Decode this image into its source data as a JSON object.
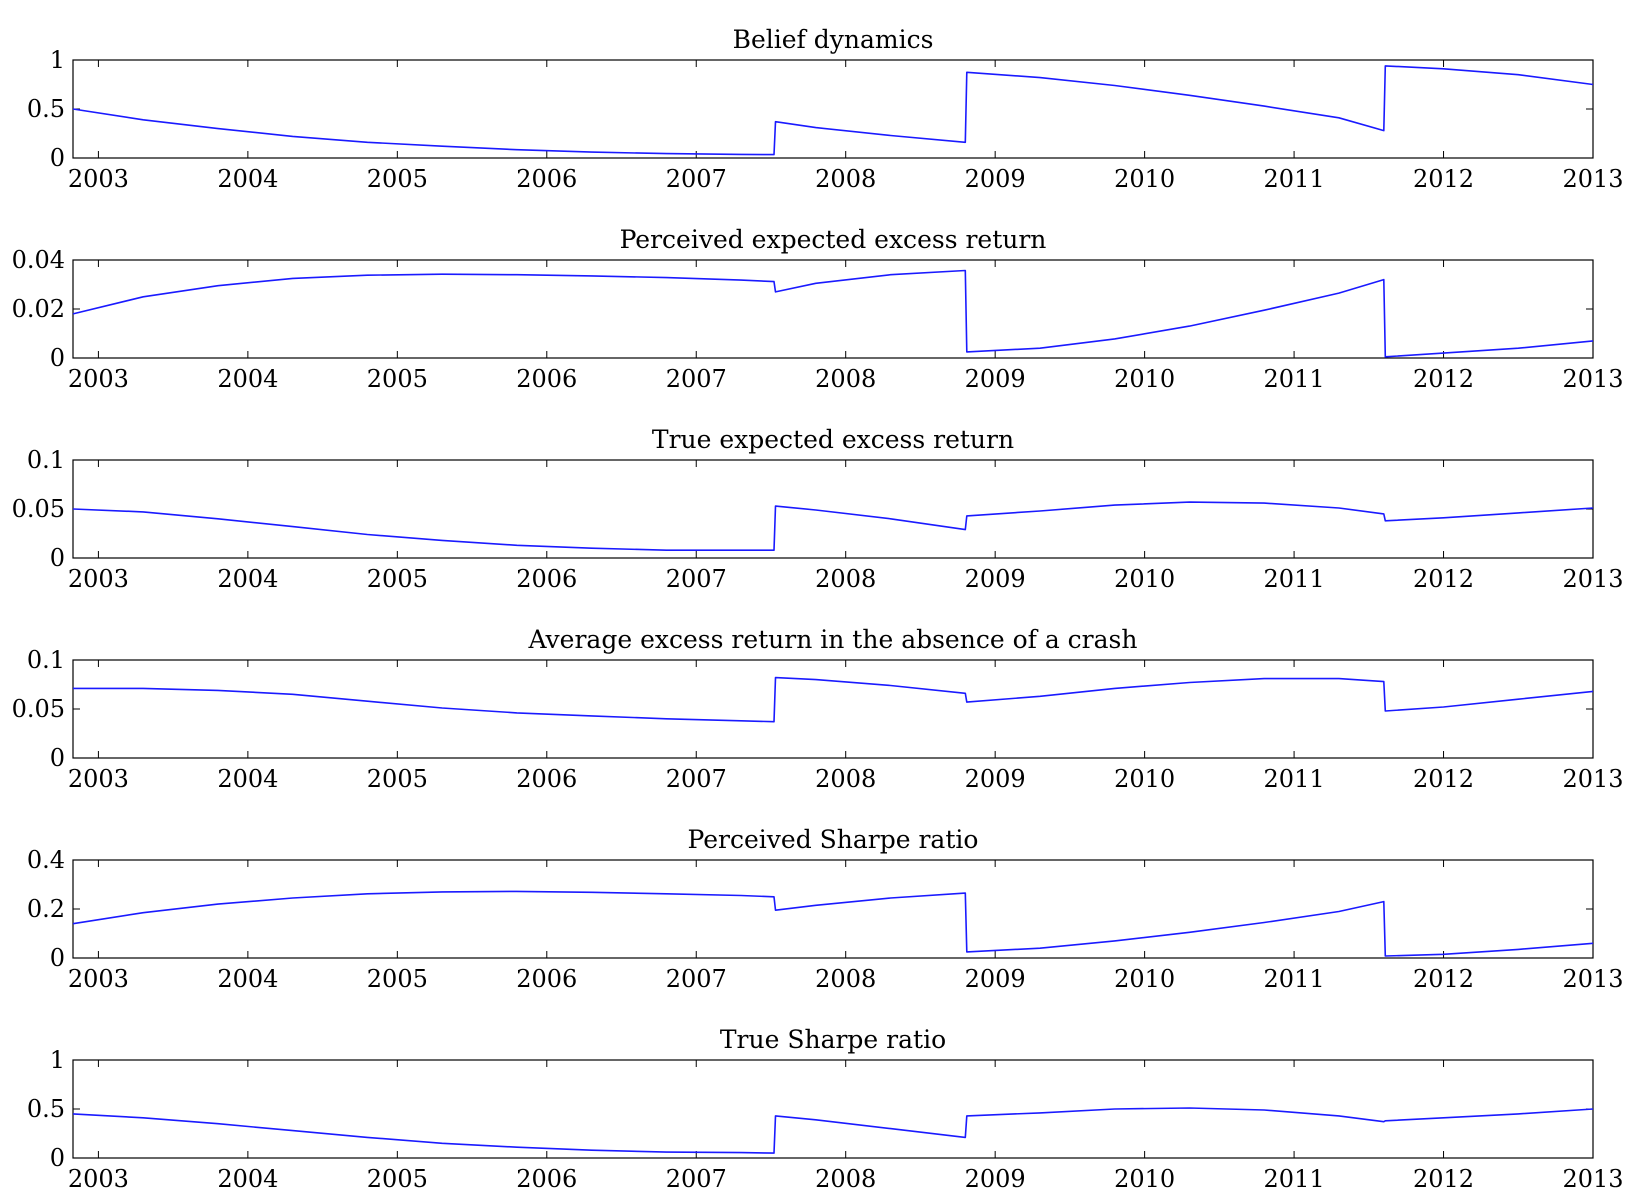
{
  "line_color": "#1a1aff",
  "axis_color": "#000000",
  "chart_data": [
    {
      "type": "line",
      "title": "Belief dynamics",
      "ylim": [
        0,
        1
      ],
      "yticks": [
        0,
        0.5,
        1
      ],
      "ytick_labels": [
        "0",
        "0.5",
        "1"
      ],
      "xlim": [
        2002.83,
        2013.0
      ],
      "xticks": [
        2003,
        2004,
        2005,
        2006,
        2007,
        2008,
        2009,
        2010,
        2011,
        2012,
        2013
      ],
      "xtick_labels": [
        "2003",
        "2004",
        "2005",
        "2006",
        "2007",
        "2008",
        "2009",
        "2010",
        "2011",
        "2012",
        "2013"
      ],
      "series": [
        {
          "x": [
            2002.83,
            2003.3,
            2003.8,
            2004.3,
            2004.8,
            2005.3,
            2005.8,
            2006.3,
            2006.8,
            2007.3,
            2007.52,
            2007.53,
            2007.8,
            2008.3,
            2008.8,
            2008.81,
            2009.3,
            2009.8,
            2010.3,
            2010.8,
            2011.3,
            2011.6,
            2011.61,
            2012.0,
            2012.5,
            2013.0
          ],
          "y": [
            0.5,
            0.39,
            0.3,
            0.22,
            0.16,
            0.12,
            0.085,
            0.06,
            0.045,
            0.037,
            0.035,
            0.37,
            0.31,
            0.23,
            0.16,
            0.875,
            0.82,
            0.74,
            0.64,
            0.53,
            0.41,
            0.28,
            0.94,
            0.91,
            0.85,
            0.75
          ]
        }
      ]
    },
    {
      "type": "line",
      "title": "Perceived expected excess return",
      "ylim": [
        0,
        0.04
      ],
      "yticks": [
        0,
        0.02,
        0.04
      ],
      "ytick_labels": [
        "0",
        "0.02",
        "0.04"
      ],
      "xlim": [
        2002.83,
        2013.0
      ],
      "xticks": [
        2003,
        2004,
        2005,
        2006,
        2007,
        2008,
        2009,
        2010,
        2011,
        2012,
        2013
      ],
      "xtick_labels": [
        "2003",
        "2004",
        "2005",
        "2006",
        "2007",
        "2008",
        "2009",
        "2010",
        "2011",
        "2012",
        "2013"
      ],
      "series": [
        {
          "x": [
            2002.83,
            2003.3,
            2003.8,
            2004.3,
            2004.8,
            2005.3,
            2005.8,
            2006.3,
            2006.8,
            2007.3,
            2007.52,
            2007.53,
            2007.8,
            2008.3,
            2008.8,
            2008.81,
            2009.3,
            2009.8,
            2010.3,
            2010.8,
            2011.3,
            2011.6,
            2011.61,
            2012.0,
            2012.5,
            2013.0
          ],
          "y": [
            0.018,
            0.025,
            0.0295,
            0.0325,
            0.0338,
            0.0342,
            0.034,
            0.0335,
            0.0328,
            0.0318,
            0.0312,
            0.027,
            0.0305,
            0.034,
            0.0357,
            0.0025,
            0.004,
            0.0078,
            0.013,
            0.0195,
            0.0265,
            0.032,
            0.0005,
            0.002,
            0.004,
            0.007
          ]
        }
      ]
    },
    {
      "type": "line",
      "title": "True expected excess return",
      "ylim": [
        0,
        0.1
      ],
      "yticks": [
        0,
        0.05,
        0.1
      ],
      "ytick_labels": [
        "0",
        "0.05",
        "0.1"
      ],
      "xlim": [
        2002.83,
        2013.0
      ],
      "xticks": [
        2003,
        2004,
        2005,
        2006,
        2007,
        2008,
        2009,
        2010,
        2011,
        2012,
        2013
      ],
      "xtick_labels": [
        "2003",
        "2004",
        "2005",
        "2006",
        "2007",
        "2008",
        "2009",
        "2010",
        "2011",
        "2012",
        "2013"
      ],
      "series": [
        {
          "x": [
            2002.83,
            2003.3,
            2003.8,
            2004.3,
            2004.8,
            2005.3,
            2005.8,
            2006.3,
            2006.8,
            2007.3,
            2007.52,
            2007.53,
            2007.8,
            2008.3,
            2008.8,
            2008.81,
            2009.3,
            2009.8,
            2010.3,
            2010.8,
            2011.3,
            2011.6,
            2011.61,
            2012.0,
            2012.5,
            2013.0
          ],
          "y": [
            0.05,
            0.047,
            0.04,
            0.032,
            0.024,
            0.018,
            0.013,
            0.01,
            0.008,
            0.008,
            0.008,
            0.053,
            0.049,
            0.04,
            0.029,
            0.043,
            0.048,
            0.054,
            0.057,
            0.056,
            0.051,
            0.045,
            0.038,
            0.041,
            0.046,
            0.051
          ]
        }
      ]
    },
    {
      "type": "line",
      "title": "Average excess return in the absence of a crash",
      "ylim": [
        0,
        0.1
      ],
      "yticks": [
        0,
        0.05,
        0.1
      ],
      "ytick_labels": [
        "0",
        "0.05",
        "0.1"
      ],
      "xlim": [
        2002.83,
        2013.0
      ],
      "xticks": [
        2003,
        2004,
        2005,
        2006,
        2007,
        2008,
        2009,
        2010,
        2011,
        2012,
        2013
      ],
      "xtick_labels": [
        "2003",
        "2004",
        "2005",
        "2006",
        "2007",
        "2008",
        "2009",
        "2010",
        "2011",
        "2012",
        "2013"
      ],
      "series": [
        {
          "x": [
            2002.83,
            2003.3,
            2003.8,
            2004.3,
            2004.8,
            2005.3,
            2005.8,
            2006.3,
            2006.8,
            2007.3,
            2007.52,
            2007.53,
            2007.8,
            2008.3,
            2008.8,
            2008.81,
            2009.3,
            2009.8,
            2010.3,
            2010.8,
            2011.3,
            2011.6,
            2011.61,
            2012.0,
            2012.5,
            2013.0
          ],
          "y": [
            0.071,
            0.071,
            0.069,
            0.065,
            0.058,
            0.051,
            0.046,
            0.043,
            0.04,
            0.038,
            0.037,
            0.082,
            0.08,
            0.074,
            0.066,
            0.057,
            0.063,
            0.071,
            0.077,
            0.081,
            0.081,
            0.078,
            0.048,
            0.052,
            0.06,
            0.068
          ]
        }
      ]
    },
    {
      "type": "line",
      "title": "Perceived Sharpe ratio",
      "ylim": [
        0,
        0.4
      ],
      "yticks": [
        0,
        0.2,
        0.4
      ],
      "ytick_labels": [
        "0",
        "0.2",
        "0.4"
      ],
      "xlim": [
        2002.83,
        2013.0
      ],
      "xticks": [
        2003,
        2004,
        2005,
        2006,
        2007,
        2008,
        2009,
        2010,
        2011,
        2012,
        2013
      ],
      "xtick_labels": [
        "2003",
        "2004",
        "2005",
        "2006",
        "2007",
        "2008",
        "2009",
        "2010",
        "2011",
        "2012",
        "2013"
      ],
      "series": [
        {
          "x": [
            2002.83,
            2003.3,
            2003.8,
            2004.3,
            2004.8,
            2005.3,
            2005.8,
            2006.3,
            2006.8,
            2007.3,
            2007.52,
            2007.53,
            2007.8,
            2008.3,
            2008.8,
            2008.81,
            2009.3,
            2009.8,
            2010.3,
            2010.8,
            2011.3,
            2011.6,
            2011.61,
            2012.0,
            2012.5,
            2013.0
          ],
          "y": [
            0.14,
            0.185,
            0.22,
            0.245,
            0.262,
            0.27,
            0.272,
            0.268,
            0.262,
            0.255,
            0.25,
            0.195,
            0.215,
            0.245,
            0.265,
            0.025,
            0.04,
            0.07,
            0.105,
            0.145,
            0.19,
            0.23,
            0.008,
            0.015,
            0.035,
            0.06
          ]
        }
      ]
    },
    {
      "type": "line",
      "title": "True Sharpe ratio",
      "ylim": [
        0,
        1
      ],
      "yticks": [
        0,
        0.5,
        1
      ],
      "ytick_labels": [
        "0",
        "0.5",
        "1"
      ],
      "xlim": [
        2002.83,
        2013.0
      ],
      "xticks": [
        2003,
        2004,
        2005,
        2006,
        2007,
        2008,
        2009,
        2010,
        2011,
        2012,
        2013
      ],
      "xtick_labels": [
        "2003",
        "2004",
        "2005",
        "2006",
        "2007",
        "2008",
        "2009",
        "2010",
        "2011",
        "2012",
        "2013"
      ],
      "series": [
        {
          "x": [
            2002.83,
            2003.3,
            2003.8,
            2004.3,
            2004.8,
            2005.3,
            2005.8,
            2006.3,
            2006.8,
            2007.3,
            2007.52,
            2007.53,
            2007.8,
            2008.3,
            2008.8,
            2008.81,
            2009.3,
            2009.8,
            2010.3,
            2010.8,
            2011.3,
            2011.6,
            2011.61,
            2012.0,
            2012.5,
            2013.0
          ],
          "y": [
            0.45,
            0.41,
            0.35,
            0.28,
            0.21,
            0.15,
            0.11,
            0.08,
            0.06,
            0.055,
            0.05,
            0.43,
            0.39,
            0.3,
            0.21,
            0.43,
            0.46,
            0.5,
            0.51,
            0.49,
            0.43,
            0.37,
            0.38,
            0.41,
            0.45,
            0.5
          ]
        }
      ]
    }
  ]
}
